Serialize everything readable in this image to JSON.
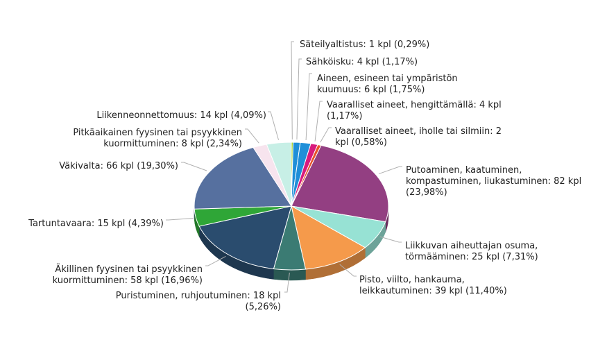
{
  "chart_data": {
    "type": "pie",
    "title": "",
    "unit": "kpl",
    "slices": [
      {
        "label": "Säteilyaltistus",
        "value": 1,
        "percent": "0,29%",
        "color": "#a6d12a",
        "lines": [
          "Säteilyaltistus: 1 kpl (0,29%)"
        ]
      },
      {
        "label": "Sähköisku",
        "value": 4,
        "percent": "1,17%",
        "color": "#1f8fd8",
        "lines": [
          "Sähköisku: 4 kpl (1,17%)"
        ]
      },
      {
        "label": "Aineen, esineen tai ympäristön kuumuus",
        "value": 6,
        "percent": "1,75%",
        "color": "#1f8fd8",
        "lines": [
          "Aineen, esineen tai ympäristön",
          "kuumuus: 6 kpl (1,75%)"
        ]
      },
      {
        "label": "Vaaralliset aineet, hengittämällä",
        "value": 4,
        "percent": "1,17%",
        "color": "#d81b7d",
        "lines": [
          "Vaaralliset aineet, hengittämällä: 4 kpl",
          "(1,17%)"
        ]
      },
      {
        "label": "Vaaralliset aineet, iholle tai silmiin",
        "value": 2,
        "percent": "0,58%",
        "color": "#e8532a",
        "lines": [
          "Vaaralliset aineet, iholle tai silmiin: 2",
          "kpl (0,58%)"
        ]
      },
      {
        "label": "Putoaminen, kaatuminen, kompastuminen, liukastuminen",
        "value": 82,
        "percent": "23,98%",
        "color": "#933f82",
        "lines": [
          "Putoaminen, kaatuminen,",
          "kompastuminen, liukastuminen: 82 kpl",
          "(23,98%)"
        ]
      },
      {
        "label": "Liikkuvan aiheuttajan osuma, törmääminen",
        "value": 25,
        "percent": "7,31%",
        "color": "#97e2d4",
        "lines": [
          "Liikkuvan aiheuttajan osuma,",
          "törmääminen: 25 kpl (7,31%)"
        ]
      },
      {
        "label": "Pisto, viilto, hankauma, leikkautuminen",
        "value": 39,
        "percent": "11,40%",
        "color": "#f59a4b",
        "lines": [
          "Pisto, viilto, hankauma,",
          "leikkautuminen: 39 kpl (11,40%)"
        ]
      },
      {
        "label": "Puristuminen, ruhjoutuminen",
        "value": 18,
        "percent": "5,26%",
        "color": "#3b7b73",
        "lines": [
          "Puristuminen, ruhjoutuminen: 18 kpl",
          "(5,26%)"
        ]
      },
      {
        "label": "Äkillinen fyysinen tai psyykkinen kuormittuminen",
        "value": 58,
        "percent": "16,96%",
        "color": "#2a4c6e",
        "lines": [
          "Äkillinen fyysinen tai psyykkinen",
          "kuormittuminen: 58 kpl (16,96%)"
        ]
      },
      {
        "label": "Tartuntavaara",
        "value": 15,
        "percent": "4,39%",
        "color": "#2fa637",
        "lines": [
          "Tartuntavaara: 15 kpl (4,39%)"
        ]
      },
      {
        "label": "Väkivalta",
        "value": 66,
        "percent": "19,30%",
        "color": "#56709f",
        "lines": [
          "Väkivalta: 66 kpl (19,30%)"
        ]
      },
      {
        "label": "Pitkäaikainen fyysinen tai psyykkinen kuormittuminen",
        "value": 8,
        "percent": "2,34%",
        "color": "#f7e4ee",
        "lines": [
          "Pitkäaikainen fyysinen tai psyykkinen",
          "kuormittuminen: 8 kpl (2,34%)"
        ]
      },
      {
        "label": "Liikenneonnettomuus",
        "value": 14,
        "percent": "4,09%",
        "color": "#c7efe6",
        "lines": [
          "Liikenneonnettomuus: 14 kpl (4,09%)"
        ]
      }
    ]
  }
}
